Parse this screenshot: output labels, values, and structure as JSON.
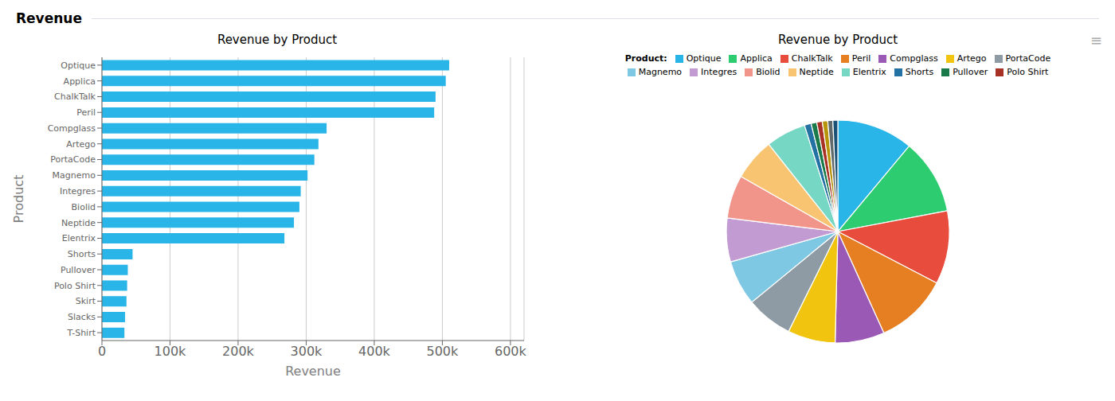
{
  "title": "Revenue",
  "chart_data": [
    {
      "type": "bar",
      "title": "Revenue by Product",
      "orientation": "horizontal",
      "categories": [
        "Optique",
        "Applica",
        "ChalkTalk",
        "Peril",
        "Compglass",
        "Artego",
        "PortaCode",
        "Magnemo",
        "Integres",
        "Biolid",
        "Neptide",
        "Elentrix",
        "Shorts",
        "Pullover",
        "Polo Shirt",
        "Skirt",
        "Slacks",
        "T-Shirt"
      ],
      "values": [
        510000,
        505000,
        490000,
        488000,
        330000,
        318000,
        312000,
        302000,
        292000,
        290000,
        282000,
        268000,
        45000,
        38000,
        37000,
        36000,
        34000,
        33000
      ],
      "color": "#29b5e8",
      "xlabel": "Revenue",
      "ylabel": "Product",
      "xlim": [
        0,
        620000
      ],
      "xticks": [
        0,
        {
          "value": 100000,
          "label": "100k"
        },
        {
          "value": 200000,
          "label": "200k"
        },
        {
          "value": 300000,
          "label": "300k"
        },
        {
          "value": 400000,
          "label": "400k"
        },
        {
          "value": 500000,
          "label": "500k"
        },
        {
          "value": 600000,
          "label": "600k"
        }
      ],
      "grid": true
    },
    {
      "type": "pie",
      "title": "Revenue by Product",
      "categories": [
        "Optique",
        "Applica",
        "ChalkTalk",
        "Peril",
        "Compglass",
        "Artego",
        "PortaCode",
        "Magnemo",
        "Integres",
        "Biolid",
        "Neptide",
        "Elentrix",
        "Shorts",
        "Pullover",
        "Polo Shirt",
        null,
        null,
        null
      ],
      "values": [
        510000,
        505000,
        490000,
        488000,
        330000,
        318000,
        312000,
        302000,
        292000,
        290000,
        282000,
        268000,
        45000,
        38000,
        37000,
        36000,
        34000,
        33000
      ],
      "colors": [
        "#29b5e8",
        "#2ecc71",
        "#e74c3c",
        "#e67e22",
        "#9b59b6",
        "#f1c40f",
        "#8e9ba4",
        "#7ec8e3",
        "#c39bd3",
        "#f1948a",
        "#f8c471",
        "#76d7c4",
        "#2471a3",
        "#1a7a4a",
        "#a93226",
        "#b7950b",
        "#616a6b",
        "#1a5276"
      ],
      "legend": "top",
      "legend_title": "Product:",
      "annotations": [
        "≡"
      ]
    }
  ]
}
